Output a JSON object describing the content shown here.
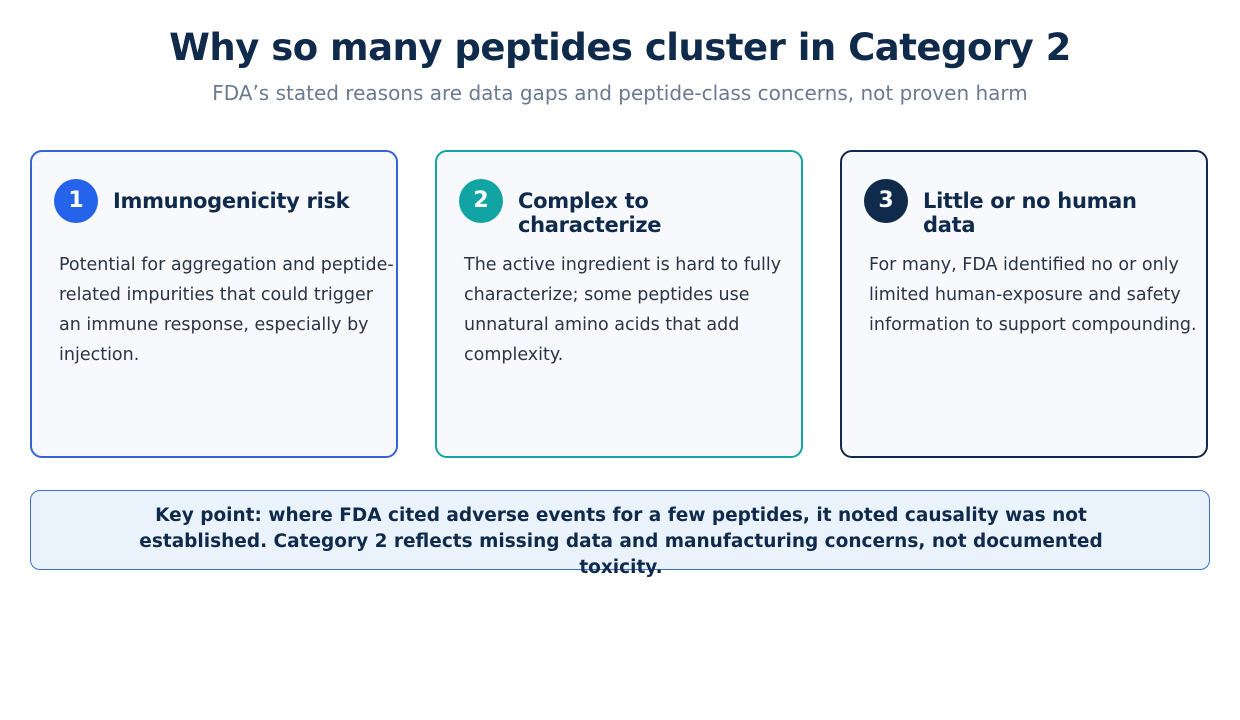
{
  "header": {
    "title": "Why so many peptides cluster in Category 2",
    "subtitle": "FDA’s stated reasons are data gaps and peptide-class concerns, not proven harm"
  },
  "cards": [
    {
      "number": "1",
      "title": "Immunogenicity risk",
      "body": "Potential for aggregation and peptide-related impurities that could trigger an immune response, especially by injection.",
      "accent": "#2563eb"
    },
    {
      "number": "2",
      "title": "Complex to characterize",
      "body": "The active ingredient is hard to fully characterize; some peptides use unnatural amino acids that add complexity.",
      "accent": "#12a3a3"
    },
    {
      "number": "3",
      "title": "Little or no human data",
      "body": "For many, FDA identified no or only limited human-exposure and safety information to support compounding.",
      "accent": "#0f2a4a"
    }
  ],
  "keypoint": {
    "text": "Key point: where FDA cited adverse events for a few peptides, it noted causality was not established. Category 2 reflects missing data and manufacturing concerns, not documented toxicity."
  }
}
